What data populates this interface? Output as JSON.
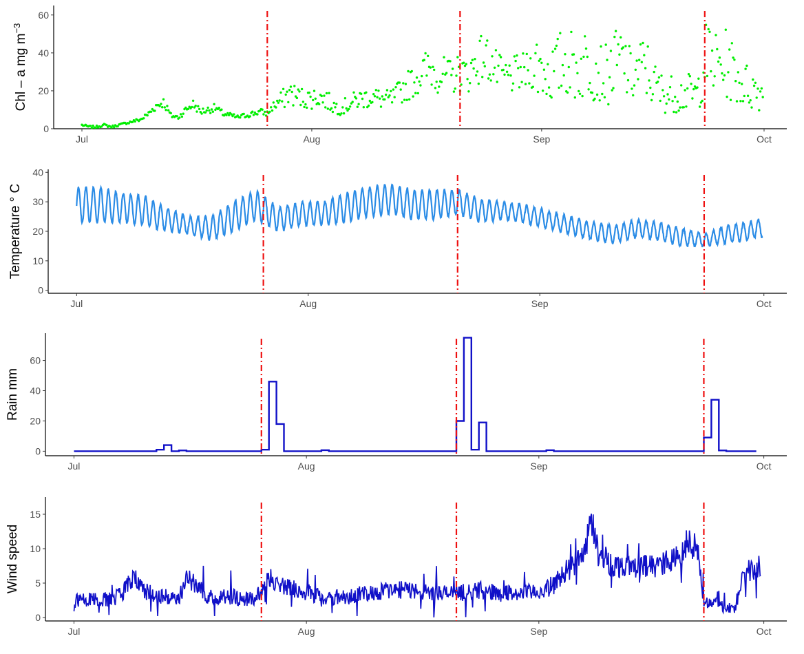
{
  "chart_data": [
    {
      "type": "scatter",
      "ylabel": "Chl – a mg m",
      "ylabel_sup": "−3",
      "ylim": [
        0,
        65
      ],
      "yticks": [
        0,
        20,
        40,
        60
      ],
      "xlim": [
        "2020-07-01",
        "2020-10-01"
      ],
      "xticks": [
        {
          "label": "Jul",
          "date": "2020-07-01"
        },
        {
          "label": "Aug",
          "date": "2020-08-01"
        },
        {
          "label": "Sep",
          "date": "2020-09-01"
        },
        {
          "label": "Oct",
          "date": "2020-10-01"
        }
      ],
      "event_lines": [
        "2020-07-26",
        "2020-08-21",
        "2020-09-23"
      ],
      "grid": false,
      "color": "#00ee00",
      "series": [
        {
          "x": [
            "2020-07-01",
            "2020-07-02",
            "2020-07-03",
            "2020-07-04",
            "2020-07-05",
            "2020-07-06",
            "2020-07-07",
            "2020-07-08",
            "2020-07-09",
            "2020-07-10",
            "2020-07-11",
            "2020-07-12",
            "2020-07-13",
            "2020-07-14",
            "2020-07-15",
            "2020-07-16",
            "2020-07-17",
            "2020-07-18",
            "2020-07-19",
            "2020-07-20",
            "2020-07-21",
            "2020-07-22",
            "2020-07-23",
            "2020-07-24",
            "2020-07-25",
            "2020-07-26",
            "2020-07-27",
            "2020-07-28",
            "2020-07-29",
            "2020-07-30",
            "2020-07-31",
            "2020-08-01",
            "2020-08-02",
            "2020-08-03",
            "2020-08-04",
            "2020-08-05",
            "2020-08-06",
            "2020-08-07",
            "2020-08-08",
            "2020-08-09",
            "2020-08-10",
            "2020-08-11",
            "2020-08-12",
            "2020-08-13",
            "2020-08-14",
            "2020-08-15",
            "2020-08-16",
            "2020-08-17",
            "2020-08-18",
            "2020-08-19",
            "2020-08-20",
            "2020-08-21",
            "2020-08-22",
            "2020-08-23",
            "2020-08-24",
            "2020-08-25",
            "2020-08-26",
            "2020-08-27",
            "2020-08-28",
            "2020-08-29",
            "2020-08-30",
            "2020-08-31",
            "2020-09-01",
            "2020-09-02",
            "2020-09-03",
            "2020-09-04",
            "2020-09-05",
            "2020-09-06",
            "2020-09-07",
            "2020-09-08",
            "2020-09-09",
            "2020-09-10",
            "2020-09-11",
            "2020-09-12",
            "2020-09-13",
            "2020-09-14",
            "2020-09-15",
            "2020-09-16",
            "2020-09-17",
            "2020-09-18",
            "2020-09-19",
            "2020-09-20",
            "2020-09-21",
            "2020-09-22",
            "2020-09-23",
            "2020-09-24",
            "2020-09-25",
            "2020-09-26",
            "2020-09-27",
            "2020-09-28",
            "2020-09-29",
            "2020-09-30"
          ],
          "y": [
            2,
            1,
            1,
            2,
            1,
            2,
            3,
            4,
            5,
            8,
            12,
            14,
            7,
            6,
            10,
            13,
            9,
            10,
            11,
            8,
            7,
            6,
            7,
            8,
            9,
            8,
            13,
            15,
            19,
            17,
            16,
            16,
            17,
            15,
            12,
            11,
            13,
            15,
            16,
            17,
            16,
            15,
            16,
            20,
            23,
            26,
            30,
            32,
            29,
            28,
            27,
            30,
            28,
            34,
            38,
            36,
            30,
            27,
            28,
            29,
            30,
            33,
            33,
            28,
            31,
            36,
            34,
            30,
            36,
            33,
            30,
            28,
            34,
            36,
            27,
            30,
            33,
            24,
            20,
            18,
            19,
            18,
            19,
            18,
            37,
            35,
            33,
            34,
            29,
            24,
            22,
            20
          ]
        }
      ]
    },
    {
      "type": "line",
      "ylabel": "Temperature ° C",
      "ylim": [
        -1,
        41
      ],
      "yticks": [
        0,
        10,
        20,
        30,
        40
      ],
      "xlim": [
        "2020-07-01",
        "2020-10-01"
      ],
      "xticks": [
        {
          "label": "Jul",
          "date": "2020-07-01"
        },
        {
          "label": "Aug",
          "date": "2020-08-01"
        },
        {
          "label": "Sep",
          "date": "2020-09-01"
        },
        {
          "label": "Oct",
          "date": "2020-10-01"
        }
      ],
      "event_lines": [
        "2020-07-26",
        "2020-08-21",
        "2020-09-23"
      ],
      "grid": false,
      "color": "#2b8ce6",
      "series": [
        {
          "x": [
            "2020-07-01",
            "2020-07-04",
            "2020-07-07",
            "2020-07-10",
            "2020-07-13",
            "2020-07-16",
            "2020-07-19",
            "2020-07-22",
            "2020-07-25",
            "2020-07-28",
            "2020-07-31",
            "2020-08-03",
            "2020-08-06",
            "2020-08-09",
            "2020-08-12",
            "2020-08-15",
            "2020-08-18",
            "2020-08-21",
            "2020-08-24",
            "2020-08-27",
            "2020-08-30",
            "2020-09-02",
            "2020-09-05",
            "2020-09-08",
            "2020-09-11",
            "2020-09-14",
            "2020-09-17",
            "2020-09-20",
            "2020-09-23",
            "2020-09-26",
            "2020-09-29",
            "2020-09-30"
          ],
          "y": [
            29,
            29,
            28,
            27,
            24,
            22,
            21,
            25,
            29,
            24,
            26,
            26,
            28,
            30,
            31,
            29,
            29,
            30,
            27,
            27,
            26,
            24,
            22,
            20,
            19,
            21,
            20,
            18,
            17,
            19,
            20,
            21
          ],
          "amplitude": [
            6,
            6,
            5,
            5,
            4,
            3,
            4,
            5,
            5,
            4,
            4,
            4,
            5,
            5,
            5,
            5,
            5,
            4,
            4,
            3,
            3,
            3,
            3,
            3,
            3,
            3,
            3,
            3,
            2,
            3,
            3,
            3
          ]
        }
      ]
    },
    {
      "type": "line",
      "ylabel": "Rain mm",
      "ylim": [
        -3,
        78
      ],
      "yticks": [
        0,
        20,
        40,
        60
      ],
      "xlim": [
        "2020-07-01",
        "2020-10-01"
      ],
      "xticks": [
        {
          "label": "Jul",
          "date": "2020-07-01"
        },
        {
          "label": "Aug",
          "date": "2020-08-01"
        },
        {
          "label": "Sep",
          "date": "2020-09-01"
        },
        {
          "label": "Oct",
          "date": "2020-10-01"
        }
      ],
      "event_lines": [
        "2020-07-26",
        "2020-08-21",
        "2020-09-23"
      ],
      "grid": false,
      "color": "#1010c8",
      "step": true,
      "series": [
        {
          "x": [
            "2020-07-01",
            "2020-07-12",
            "2020-07-13",
            "2020-07-14",
            "2020-07-15",
            "2020-07-16",
            "2020-07-26",
            "2020-07-27",
            "2020-07-28",
            "2020-07-29",
            "2020-08-03",
            "2020-08-04",
            "2020-08-21",
            "2020-08-22",
            "2020-08-23",
            "2020-08-24",
            "2020-08-25",
            "2020-09-02",
            "2020-09-03",
            "2020-09-23",
            "2020-09-24",
            "2020-09-25",
            "2020-09-26",
            "2020-09-30"
          ],
          "y": [
            0,
            1,
            4,
            0,
            0.5,
            0,
            1,
            46,
            18,
            0,
            0.7,
            0,
            20,
            75,
            1,
            19,
            0,
            0.7,
            0,
            9,
            34,
            0.5,
            0,
            0
          ]
        }
      ]
    },
    {
      "type": "line",
      "ylabel": "Wind speed",
      "ylim": [
        -0.5,
        17.5
      ],
      "yticks": [
        0,
        5,
        10,
        15
      ],
      "xlim": [
        "2020-07-01",
        "2020-10-01"
      ],
      "xticks": [
        {
          "label": "Jul",
          "date": "2020-07-01"
        },
        {
          "label": "Aug",
          "date": "2020-08-01"
        },
        {
          "label": "Sep",
          "date": "2020-09-01"
        },
        {
          "label": "Oct",
          "date": "2020-10-01"
        }
      ],
      "event_lines": [
        "2020-07-26",
        "2020-08-21",
        "2020-09-23"
      ],
      "grid": false,
      "color": "#1010c8",
      "series": [
        {
          "x": [
            "2020-07-01",
            "2020-07-04",
            "2020-07-07",
            "2020-07-09",
            "2020-07-10",
            "2020-07-13",
            "2020-07-15",
            "2020-07-16",
            "2020-07-19",
            "2020-07-22",
            "2020-07-25",
            "2020-07-27",
            "2020-07-28",
            "2020-07-31",
            "2020-08-03",
            "2020-08-06",
            "2020-08-09",
            "2020-08-12",
            "2020-08-15",
            "2020-08-18",
            "2020-08-21",
            "2020-08-24",
            "2020-08-27",
            "2020-08-30",
            "2020-09-02",
            "2020-09-05",
            "2020-09-07",
            "2020-09-08",
            "2020-09-09",
            "2020-09-11",
            "2020-09-14",
            "2020-09-17",
            "2020-09-20",
            "2020-09-22",
            "2020-09-23",
            "2020-09-25",
            "2020-09-27",
            "2020-09-28",
            "2020-09-29",
            "2020-09-30"
          ],
          "y": [
            2.5,
            2.5,
            3,
            6,
            4,
            3,
            3,
            6,
            3,
            3,
            2.5,
            6,
            5,
            4,
            3,
            3,
            3.5,
            4,
            4,
            3.5,
            3.5,
            4,
            3.5,
            3.5,
            4,
            7,
            9,
            14,
            9,
            7.5,
            7.5,
            7.5,
            9,
            11,
            2.5,
            2,
            1,
            5,
            7,
            6.5
          ]
        }
      ]
    }
  ]
}
